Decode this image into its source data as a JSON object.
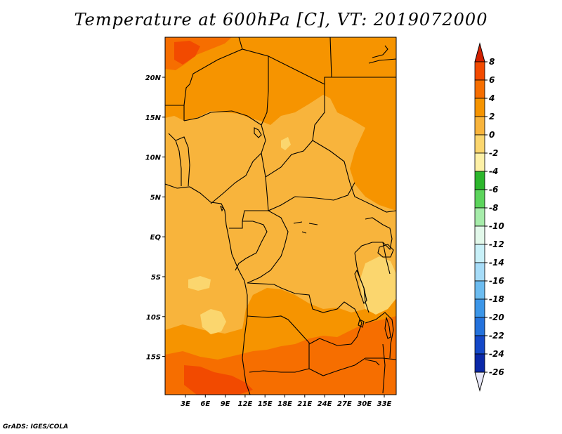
{
  "title": "Temperature at 600hPa [C], VT: 2019072000",
  "credit": "GrADS: IGES/COLA",
  "axes": {
    "lat_labels": [
      "20N",
      "15N",
      "10N",
      "5N",
      "EQ",
      "5S",
      "10S",
      "15S"
    ],
    "lon_labels": [
      "3E",
      "6E",
      "9E",
      "12E",
      "15E",
      "18E",
      "21E",
      "24E",
      "27E",
      "30E",
      "33E"
    ]
  },
  "colorbar": {
    "labels": [
      "8",
      "6",
      "4",
      "2",
      "0",
      "-2",
      "-4",
      "-6",
      "-8",
      "-10",
      "-12",
      "-14",
      "-16",
      "-18",
      "-20",
      "-22",
      "-24",
      "-26"
    ],
    "colors": [
      "#d22000",
      "#f24a00",
      "#f66e00",
      "#f69400",
      "#f8b43c",
      "#fbd66e",
      "#fdf0a6",
      "#2cb62c",
      "#5cd45c",
      "#a6ecaa",
      "#e2f8ea",
      "#c8f0f8",
      "#a6dcf8",
      "#6cbcf0",
      "#3c96e8",
      "#2472dc",
      "#1448c8",
      "#0a28a8",
      "#0c0c64"
    ],
    "max_arrow_color": "#d22000",
    "min_arrow_color": "#e8e8f8"
  },
  "map_colors": {
    "base": "#f8b43c",
    "warm": "#f69400",
    "warmer": "#f66e00",
    "hot": "#f24a00",
    "cool": "#fbd66e",
    "coastline": "#000000"
  }
}
